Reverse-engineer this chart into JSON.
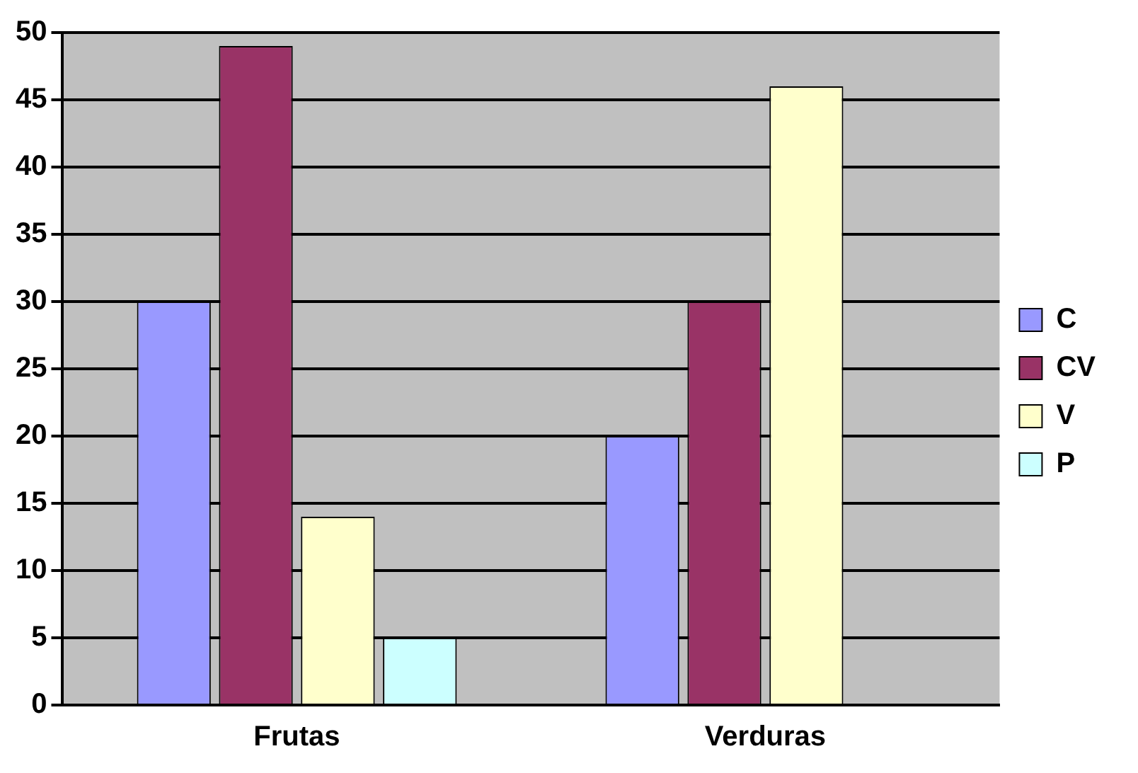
{
  "chart_data": {
    "type": "bar",
    "categories": [
      "Frutas",
      "Verduras"
    ],
    "series": [
      {
        "name": "C",
        "color": "#9999ff",
        "values": [
          30,
          20
        ]
      },
      {
        "name": "CV",
        "color": "#993366",
        "values": [
          49,
          30
        ]
      },
      {
        "name": "V",
        "color": "#ffffcc",
        "values": [
          14,
          46
        ]
      },
      {
        "name": "P",
        "color": "#ccffff",
        "values": [
          5,
          null
        ]
      }
    ],
    "ylim": [
      0,
      50
    ],
    "yticks": [
      0,
      5,
      10,
      15,
      20,
      25,
      30,
      35,
      40,
      45,
      50
    ],
    "grid": "y",
    "legend": "right"
  }
}
